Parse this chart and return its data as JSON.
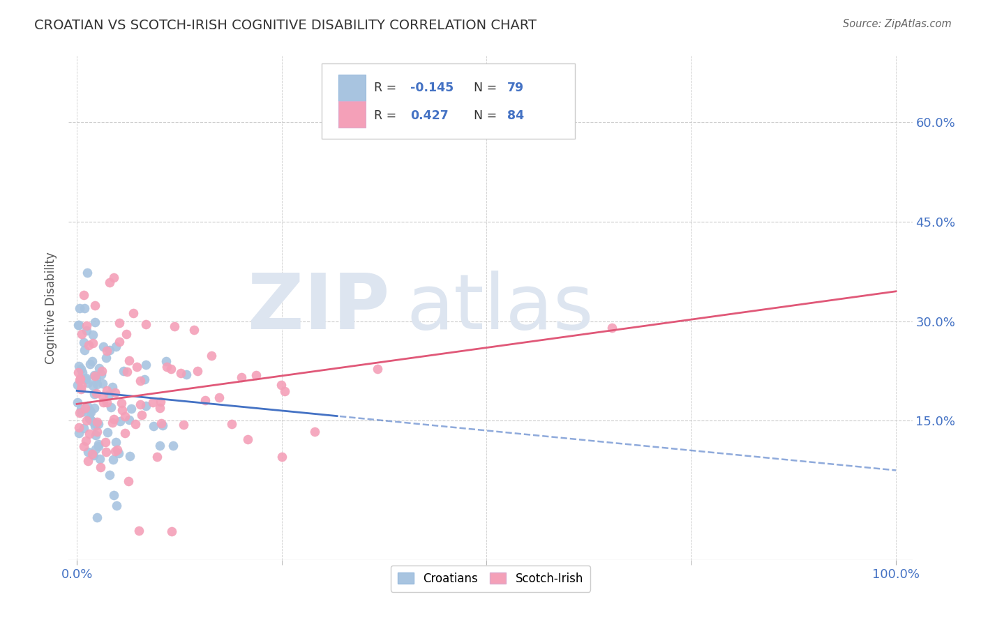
{
  "title": "CROATIAN VS SCOTCH-IRISH COGNITIVE DISABILITY CORRELATION CHART",
  "source": "Source: ZipAtlas.com",
  "ylabel": "Cognitive Disability",
  "xlim": [
    -0.01,
    1.02
  ],
  "ylim": [
    -0.06,
    0.7
  ],
  "yticks": [
    0.15,
    0.3,
    0.45,
    0.6
  ],
  "ytick_labels": [
    "15.0%",
    "30.0%",
    "45.0%",
    "60.0%"
  ],
  "xtick_labels": [
    "0.0%",
    "100.0%"
  ],
  "croatian_color": "#a8c4e0",
  "scotchirish_color": "#f4a0b8",
  "croatian_line_color": "#4472c4",
  "scotchirish_line_color": "#e05878",
  "watermark_color": "#dde5f0",
  "R_croatian": -0.145,
  "N_croatian": 79,
  "R_scotchirish": 0.427,
  "N_scotchirish": 84,
  "bg_color": "#ffffff",
  "grid_color": "#cccccc",
  "title_color": "#333333",
  "axis_label_color": "#4472c4",
  "legend_text_color": "#333333",
  "c_trend_x0": 0.0,
  "c_trend_y0": 0.195,
  "c_trend_x1": 1.0,
  "c_trend_y1": 0.075,
  "s_trend_x0": 0.0,
  "s_trend_y0": 0.175,
  "s_trend_x1": 1.0,
  "s_trend_y1": 0.345
}
